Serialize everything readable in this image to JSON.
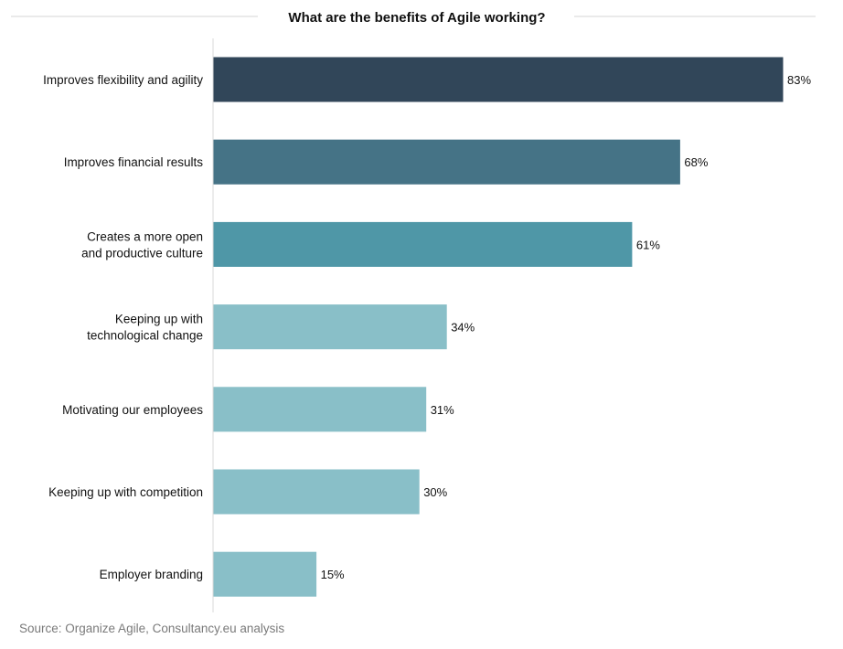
{
  "chart_data": {
    "type": "bar",
    "orientation": "horizontal",
    "title": "What are the benefits of Agile working?",
    "categories": [
      [
        "Improves flexibility and agility"
      ],
      [
        "Improves financial results"
      ],
      [
        "Creates a more open",
        "and productive culture"
      ],
      [
        "Keeping up with",
        "technological change"
      ],
      [
        "Motivating our employees"
      ],
      [
        "Keeping up with competition"
      ],
      [
        "Employer branding"
      ]
    ],
    "values": [
      83,
      68,
      61,
      34,
      31,
      30,
      15
    ],
    "value_labels": [
      "83%",
      "68%",
      "61%",
      "34%",
      "31%",
      "30%",
      "15%"
    ],
    "unit": "%",
    "xlim": [
      0,
      83
    ],
    "bar_colors": [
      "#314659",
      "#457386",
      "#4f97a7",
      "#89bfc8",
      "#89bfc8",
      "#89bfc8",
      "#89bfc8"
    ],
    "grid": false,
    "legend": "none"
  },
  "source": "Source: Organize Agile, Consultancy.eu analysis"
}
